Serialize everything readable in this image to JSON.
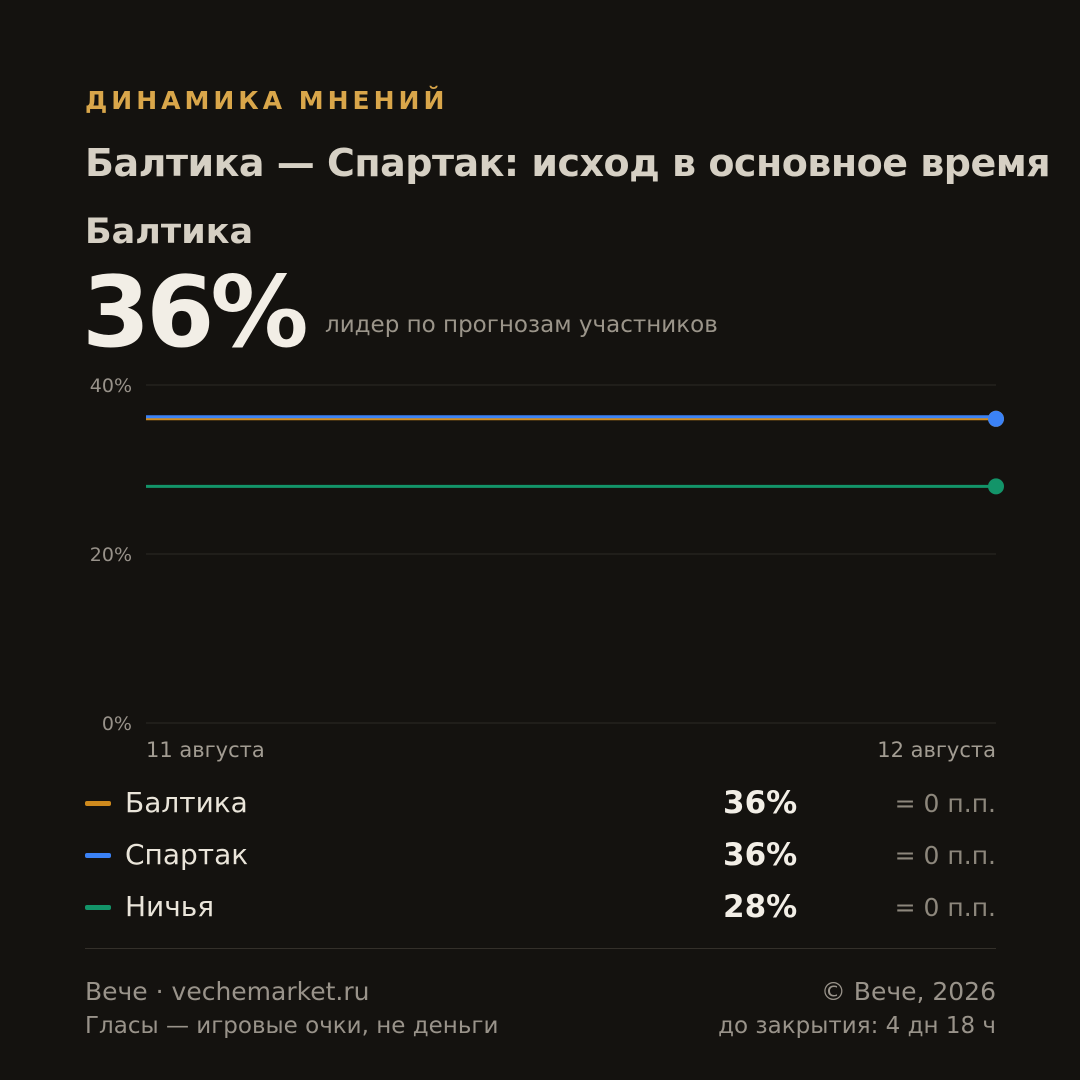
{
  "header": {
    "kicker": "ДИНАМИКА МНЕНИЙ",
    "title": "Балтика — Спартак: исход в основное время",
    "leader_name": "Балтика",
    "leader_value": "36%",
    "leader_caption": "лидер по прогнозам участников"
  },
  "colors": {
    "background": "#14120f",
    "accent": "#d9a64a",
    "baltika": "#cf8a1d",
    "spartak": "#3b82f6",
    "draw": "#139469"
  },
  "chart_data": {
    "type": "line",
    "x": [
      "11 августа",
      "12 августа"
    ],
    "ylim": [
      0,
      40
    ],
    "yticks": [
      0,
      20,
      40
    ],
    "ytick_labels": [
      "0%",
      "20%",
      "40%"
    ],
    "grid": true,
    "series": [
      {
        "name": "Балтика",
        "values": [
          36,
          36
        ],
        "color": "#cf8a1d"
      },
      {
        "name": "Спартак",
        "values": [
          36,
          36
        ],
        "color": "#3b82f6"
      },
      {
        "name": "Ничья",
        "values": [
          28,
          28
        ],
        "color": "#139469"
      }
    ]
  },
  "legend": [
    {
      "name": "Балтика",
      "value": "36%",
      "delta": "= 0 п.п.",
      "color": "#cf8a1d"
    },
    {
      "name": "Спартак",
      "value": "36%",
      "delta": "= 0 п.п.",
      "color": "#3b82f6"
    },
    {
      "name": "Ничья",
      "value": "28%",
      "delta": "= 0 п.п.",
      "color": "#139469"
    }
  ],
  "footer": {
    "brand": "Вече · vechemarket.ru",
    "note": "Гласы — игровые очки, не деньги",
    "copyright": "© Вече, 2026",
    "closing": "до закрытия: 4 дн 18 ч"
  }
}
